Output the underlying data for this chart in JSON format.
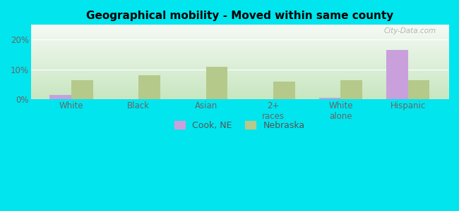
{
  "title": "Geographical mobility - Moved within same county",
  "categories": [
    "White",
    "Black",
    "Asian",
    "2+\nraces",
    "White\nalone",
    "Hispanic"
  ],
  "cook_ne": [
    1.5,
    0,
    0,
    0,
    0.5,
    16.5
  ],
  "nebraska": [
    6.5,
    8.0,
    10.8,
    6.0,
    6.5,
    6.5
  ],
  "cook_color": "#c9a0dc",
  "nebraska_color": "#b5c98a",
  "cyan_bg": "#00e5ee",
  "ylim": [
    0,
    25
  ],
  "yticks": [
    0,
    10,
    20
  ],
  "ytick_labels": [
    "0%",
    "10%",
    "20%"
  ],
  "bar_width": 0.32,
  "legend_cook": "Cook, NE",
  "legend_nebraska": "Nebraska",
  "watermark": "City-Data.com",
  "grad_top": "#f5faf5",
  "grad_bottom": "#c8e6c0"
}
